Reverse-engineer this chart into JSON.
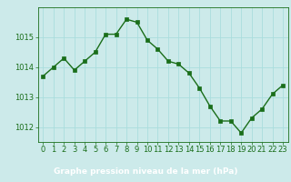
{
  "hours": [
    0,
    1,
    2,
    3,
    4,
    5,
    6,
    7,
    8,
    9,
    10,
    11,
    12,
    13,
    14,
    15,
    16,
    17,
    18,
    19,
    20,
    21,
    22,
    23
  ],
  "pressure": [
    1013.7,
    1014.0,
    1014.3,
    1013.9,
    1014.2,
    1014.5,
    1015.1,
    1015.1,
    1015.6,
    1015.5,
    1014.9,
    1014.6,
    1014.2,
    1014.1,
    1013.8,
    1013.3,
    1012.7,
    1012.2,
    1012.2,
    1011.8,
    1012.3,
    1012.6,
    1013.1,
    1013.4
  ],
  "line_color": "#1a6e1a",
  "marker": "s",
  "markersize": 2.5,
  "linewidth": 1.0,
  "bg_color": "#cceaea",
  "grid_color": "#aadddd",
  "axis_label_color": "#1a6e1a",
  "tick_color": "#1a6e1a",
  "xlabel": "Graphe pression niveau de la mer (hPa)",
  "xlabel_bg": "#2d6e2d",
  "xlabel_text_color": "#ffffff",
  "ylim": [
    1011.5,
    1016.0
  ],
  "yticks": [
    1012,
    1013,
    1014,
    1015
  ],
  "xticks": [
    0,
    1,
    2,
    3,
    4,
    5,
    6,
    7,
    8,
    9,
    10,
    11,
    12,
    13,
    14,
    15,
    16,
    17,
    18,
    19,
    20,
    21,
    22,
    23
  ],
  "xlabel_fontsize": 6.5,
  "tick_fontsize": 6.0,
  "xlabel_fontweight": "bold"
}
